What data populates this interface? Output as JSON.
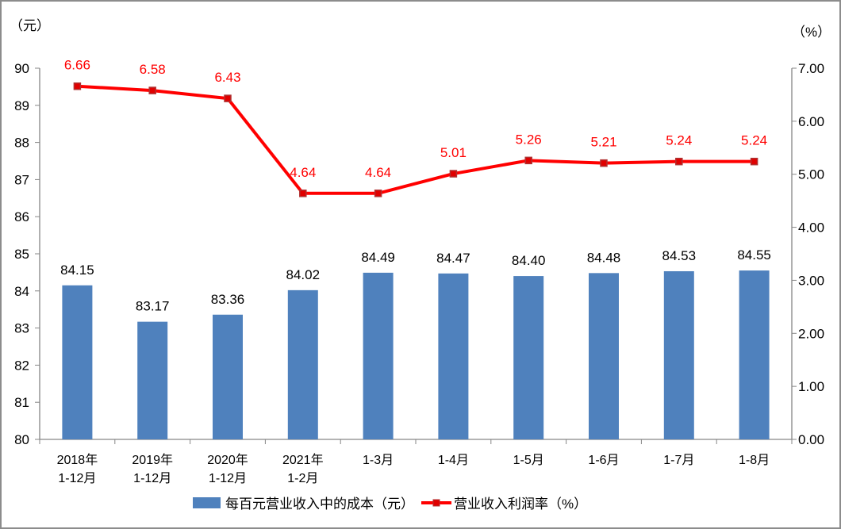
{
  "chart_data": {
    "type": "bar+line",
    "categories": [
      [
        "2018年",
        "1-12月"
      ],
      [
        "2019年",
        "1-12月"
      ],
      [
        "2020年",
        "1-12月"
      ],
      [
        "2021年",
        "1-2月"
      ],
      [
        "1-3月"
      ],
      [
        "1-4月"
      ],
      [
        "1-5月"
      ],
      [
        "1-6月"
      ],
      [
        "1-7月"
      ],
      [
        "1-8月"
      ]
    ],
    "series": [
      {
        "name": "每百元营业收入中的成本（元）",
        "type": "bar",
        "axis": "left",
        "color": "#4f81bd",
        "values": [
          84.15,
          83.17,
          83.36,
          84.02,
          84.49,
          84.47,
          84.4,
          84.48,
          84.53,
          84.55
        ],
        "labels": [
          "84.15",
          "83.17",
          "83.36",
          "84.02",
          "84.49",
          "84.47",
          "84.40",
          "84.48",
          "84.53",
          "84.55"
        ]
      },
      {
        "name": "营业收入利润率（%）",
        "type": "line",
        "axis": "right",
        "color": "#ff0000",
        "values": [
          6.66,
          6.58,
          6.43,
          4.64,
          4.64,
          5.01,
          5.26,
          5.21,
          5.24,
          5.24
        ],
        "labels": [
          "6.66",
          "6.58",
          "6.43",
          "4.64",
          "4.64",
          "5.01",
          "5.26",
          "5.21",
          "5.24",
          "5.24"
        ]
      }
    ],
    "left_axis": {
      "label": "（元）",
      "ylim": [
        80,
        90
      ],
      "ticks": [
        "80",
        "81",
        "82",
        "83",
        "84",
        "85",
        "86",
        "87",
        "88",
        "89",
        "90"
      ]
    },
    "right_axis": {
      "label": "（%）",
      "ylim": [
        0,
        7
      ],
      "ticks": [
        "0.00",
        "1.00",
        "2.00",
        "3.00",
        "4.00",
        "5.00",
        "6.00",
        "7.00"
      ]
    },
    "grid": false,
    "legend": "bottom"
  }
}
